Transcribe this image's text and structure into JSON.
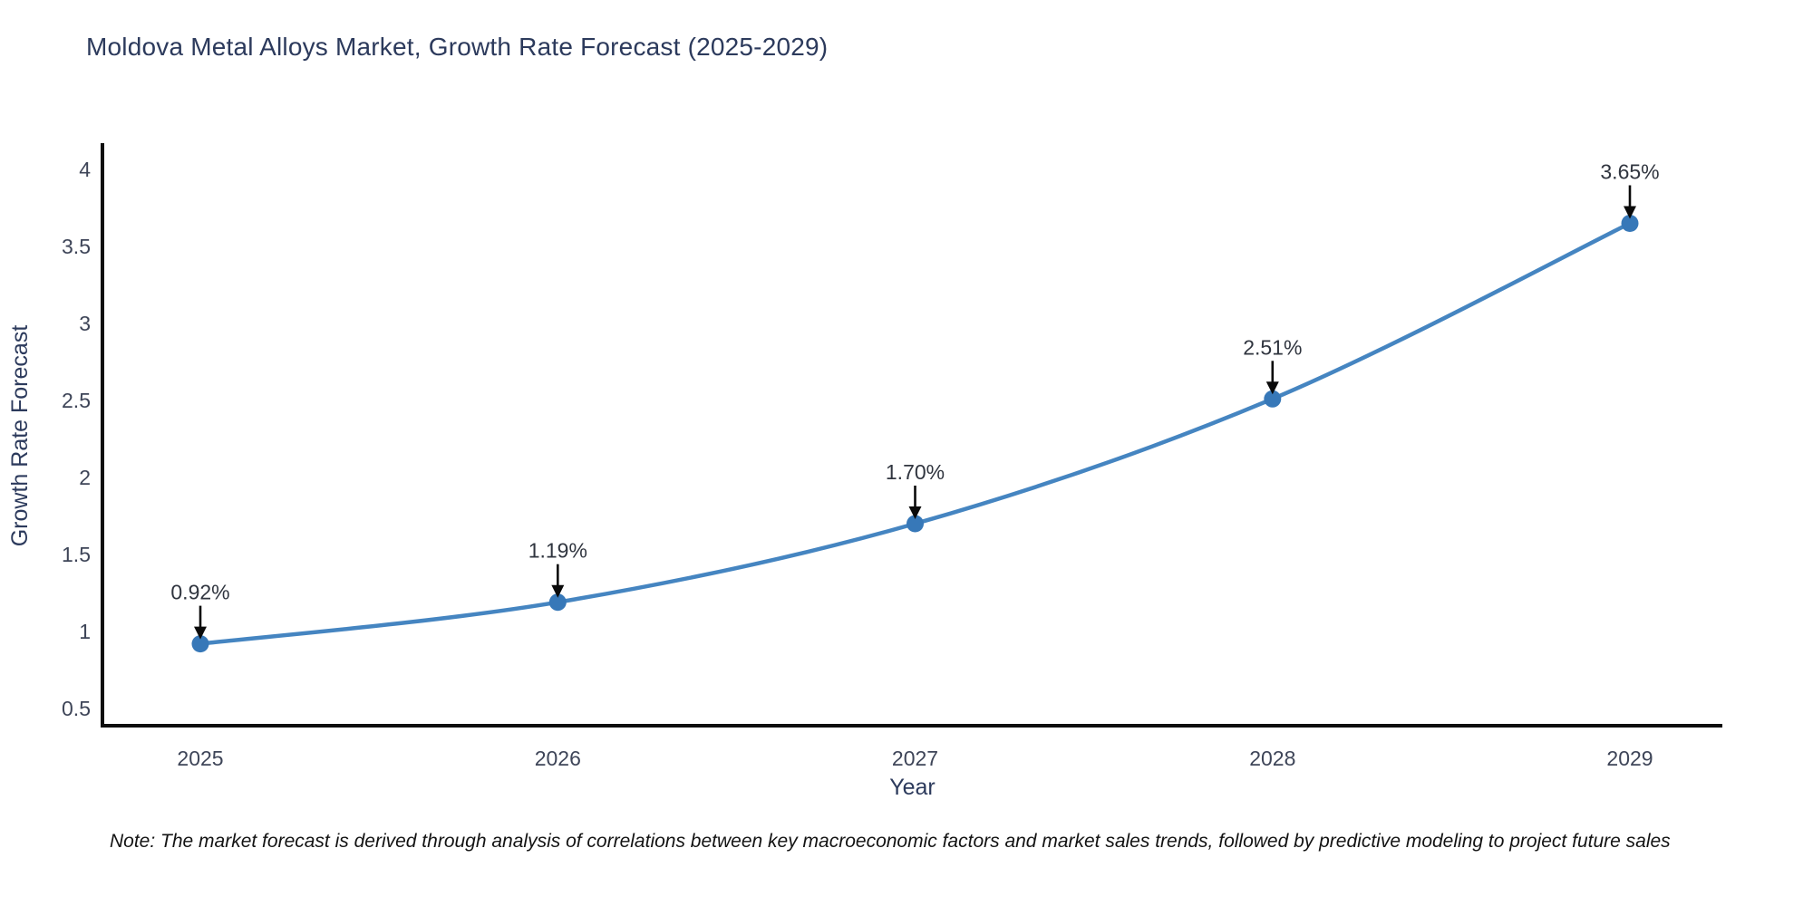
{
  "header": {
    "title": "Moldova Metal Alloys Market, Growth Rate Forecast (2025-2029)"
  },
  "chart_data": {
    "type": "line",
    "title": "Moldova Metal Alloys Market, Growth Rate Forecast (2025-2029)",
    "xlabel": "Year",
    "ylabel": "Growth Rate Forecast",
    "x": [
      2025,
      2026,
      2027,
      2028,
      2029
    ],
    "x_tick_labels": [
      "2025",
      "2026",
      "2027",
      "2028",
      "2029"
    ],
    "series": [
      {
        "name": "Growth Rate Forecast",
        "values": [
          0.92,
          1.19,
          1.7,
          2.51,
          3.65
        ],
        "point_labels": [
          "0.92%",
          "1.19%",
          "1.70%",
          "2.51%",
          "3.65%"
        ]
      }
    ],
    "y_ticks": [
      4,
      3.5,
      3,
      2.5,
      2,
      1.5,
      1,
      0.5
    ],
    "y_tick_labels": [
      "4",
      "3.5",
      "3",
      "2.5",
      "2",
      "1.5",
      "1",
      "0.5"
    ],
    "ylim": [
      0.39,
      4.17
    ],
    "grid": false,
    "legend_position": "none",
    "colors": {
      "line": "#4585c1",
      "marker": "#3778b8",
      "axis": "#0d0d0d",
      "tick_text": "#3e4558",
      "axis_title_text": "#2c3a5c",
      "annotation_text": "#30353f",
      "annotation_arrow": "#0a0a0a",
      "background": "#ffffff"
    }
  },
  "footnote": {
    "text": "Note: The market forecast is derived through analysis of correlations between key macroeconomic factors and market sales trends, followed by predictive modeling to project future sales"
  }
}
